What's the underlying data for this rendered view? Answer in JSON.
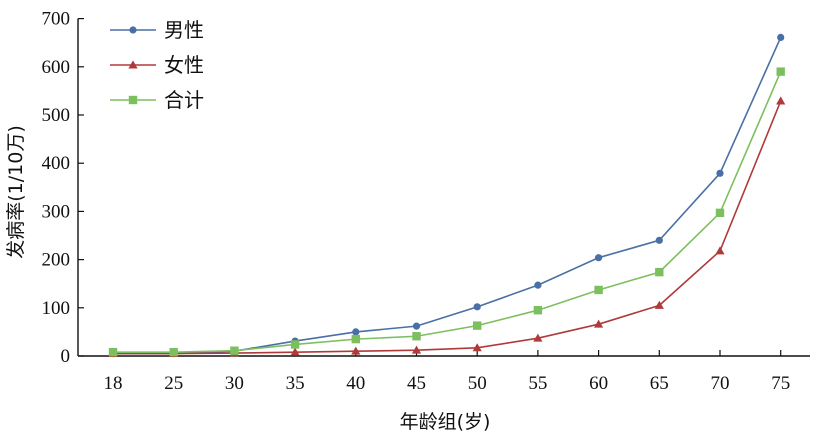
{
  "chart_data": {
    "type": "line",
    "title": "",
    "xlabel": "年龄组(岁)",
    "ylabel": "发病率(1/10万)",
    "categories": [
      "18",
      "25",
      "30",
      "35",
      "40",
      "45",
      "50",
      "55",
      "60",
      "65",
      "70",
      "75"
    ],
    "ylim": [
      0,
      700
    ],
    "yticks": [
      0,
      100,
      200,
      300,
      400,
      500,
      600,
      700
    ],
    "grid": false,
    "legend_position": "top-left",
    "series": [
      {
        "name": "男性",
        "color": "#4a6fa5",
        "marker": "circle",
        "values": [
          5,
          5,
          10,
          31,
          50,
          62,
          102,
          147,
          204,
          240,
          379,
          661
        ]
      },
      {
        "name": "女性",
        "color": "#b03a3a",
        "marker": "triangle",
        "values": [
          5,
          5,
          6,
          8,
          10,
          12,
          17,
          37,
          66,
          105,
          218,
          529
        ]
      },
      {
        "name": "合计",
        "color": "#7cbf5e",
        "marker": "square",
        "values": [
          8,
          8,
          11,
          24,
          35,
          41,
          63,
          95,
          137,
          174,
          297,
          590
        ]
      }
    ]
  }
}
